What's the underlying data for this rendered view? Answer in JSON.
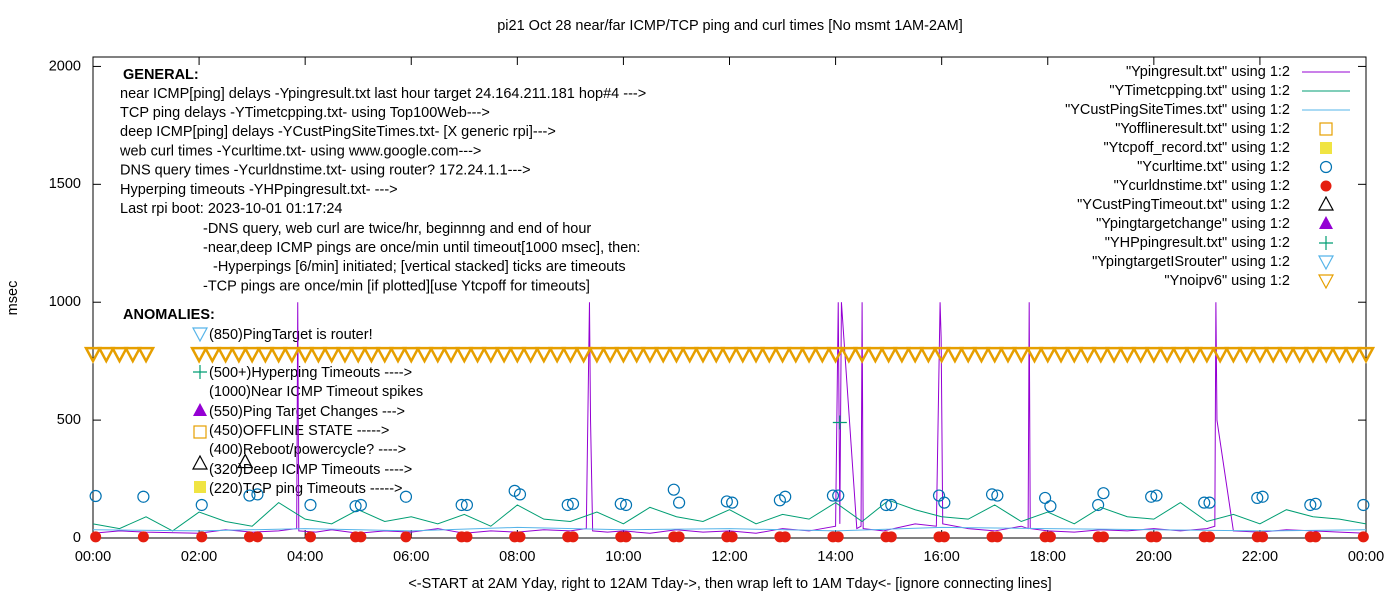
{
  "chart_data": {
    "type": "line",
    "title": "pi21 Oct 28  near/far ICMP/TCP ping and curl times [No msmt 1AM-2AM]",
    "x_label": "<-START at 2AM Yday, right to 12AM Tday->, then wrap left to 1AM Tday<- [ignore connecting lines]",
    "y_label": "msec",
    "xlim": [
      0,
      24
    ],
    "ylim": [
      0,
      2040
    ],
    "xticks": [
      {
        "value": 0,
        "label": "00:00"
      },
      {
        "value": 2,
        "label": "02:00"
      },
      {
        "value": 4,
        "label": "04:00"
      },
      {
        "value": 6,
        "label": "06:00"
      },
      {
        "value": 8,
        "label": "08:00"
      },
      {
        "value": 10,
        "label": "10:00"
      },
      {
        "value": 12,
        "label": "12:00"
      },
      {
        "value": 14,
        "label": "14:00"
      },
      {
        "value": 16,
        "label": "16:00"
      },
      {
        "value": 18,
        "label": "18:00"
      },
      {
        "value": 20,
        "label": "20:00"
      },
      {
        "value": 22,
        "label": "22:00"
      },
      {
        "value": 24,
        "label": "00:00"
      }
    ],
    "yticks": [
      0,
      500,
      1000,
      1500,
      2000
    ],
    "grid": false,
    "legend": "top-right",
    "annotations": [
      "GENERAL:",
      "near ICMP[ping] delays -Ypingresult.txt last hour target 24.164.211.181 hop#4 --->",
      "TCP ping delays -YTimetcpping.txt- using Top100Web--->",
      "deep ICMP[ping] delays -YCustPingSiteTimes.txt- [X generic rpi]--->",
      "web curl times -Ycurltime.txt- using www.google.com--->",
      "DNS query times -Ycurldnstime.txt- using router? 172.24.1.1--->",
      "Hyperping timeouts -YHPpingresult.txt- --->",
      "Last rpi boot: 2023-10-01 01:17:24",
      "-DNS query, web curl are twice/hr, beginnng and end of hour",
      "-near,deep ICMP pings are once/min until timeout[1000 msec], then:",
      "-Hyperpings [6/min] initiated; [vertical stacked] ticks are timeouts",
      "-TCP pings are once/min [if plotted][use Ytcpoff for timeouts]",
      "ANOMALIES:",
      "(850)PingTarget is router!",
      "(500+)Hyperping Timeouts ---->",
      "(1000)Near ICMP Timeout spikes",
      "(550)Ping Target Changes --->",
      "(450)OFFLINE STATE ----->",
      "(400)Reboot/powercycle? ---->",
      "(320)Deep ICMP Timeouts ---->",
      "(220)TCP ping Timeouts ----->"
    ],
    "series": [
      {
        "name": "\"Ypingresult.txt\" using 1:2",
        "color": "#9400d3",
        "style": "line",
        "x": [
          0,
          0.5,
          1,
          2,
          2.5,
          3,
          3.5,
          3.84,
          3.86,
          3.88,
          4.2,
          4.5,
          5,
          5.5,
          6,
          6.5,
          7,
          7.5,
          8,
          8.5,
          9,
          9.3,
          9.36,
          9.38,
          9.42,
          9.7,
          10,
          10.5,
          11,
          11.5,
          12,
          12.5,
          13,
          13.5,
          14,
          14.05,
          14.08,
          14.11,
          14.4,
          14.48,
          14.5,
          14.52,
          14.9,
          15.5,
          15.9,
          15.97,
          15.99,
          16.02,
          16.5,
          17,
          17.5,
          17.63,
          17.65,
          17.67,
          18,
          18.5,
          19,
          19.5,
          20,
          20.5,
          21,
          21.15,
          21.17,
          21.19,
          21.5,
          22,
          22.5,
          23,
          23.5,
          24
        ],
        "values": [
          20,
          30,
          25,
          20,
          35,
          25,
          30,
          40,
          1000,
          30,
          25,
          35,
          20,
          30,
          25,
          40,
          20,
          30,
          25,
          35,
          30,
          40,
          1000,
          500,
          30,
          25,
          30,
          20,
          35,
          25,
          30,
          20,
          40,
          30,
          50,
          1000,
          60,
          1000,
          40,
          50,
          1000,
          40,
          30,
          60,
          50,
          1000,
          850,
          60,
          40,
          30,
          50,
          40,
          1000,
          40,
          30,
          25,
          35,
          30,
          40,
          30,
          40,
          50,
          1000,
          500,
          30,
          25,
          35,
          30,
          25,
          20
        ]
      },
      {
        "name": "\"YTimetcpping.txt\" using 1:2",
        "color": "#009e73",
        "style": "line",
        "x": [
          0,
          0.5,
          1,
          1.5,
          2,
          2.5,
          3,
          3.5,
          4,
          4.5,
          5,
          5.5,
          6,
          6.5,
          7,
          7.5,
          8,
          8.5,
          9,
          9.5,
          10,
          10.5,
          11,
          11.5,
          12,
          12.5,
          13,
          13.5,
          14,
          14.5,
          15,
          15.5,
          16,
          16.5,
          17,
          17.5,
          18,
          18.5,
          19,
          19.5,
          20,
          20.5,
          21,
          21.5,
          22,
          22.5,
          23,
          23.5,
          24
        ],
        "values": [
          60,
          40,
          90,
          30,
          110,
          70,
          50,
          150,
          80,
          60,
          120,
          70,
          90,
          60,
          100,
          50,
          140,
          80,
          70,
          110,
          60,
          130,
          90,
          70,
          120,
          60,
          100,
          80,
          150,
          70,
          160,
          120,
          90,
          80,
          140,
          70,
          110,
          60,
          130,
          90,
          80,
          150,
          70,
          100,
          60,
          120,
          90,
          80,
          60
        ]
      },
      {
        "name": "\"YCustPingSiteTimes.txt\" using 1:2",
        "color": "#56b4e9",
        "style": "line",
        "x": [
          0,
          2,
          4,
          6,
          8,
          10,
          12,
          14,
          16,
          18,
          20,
          22,
          24
        ],
        "values": [
          35,
          30,
          40,
          30,
          45,
          35,
          40,
          30,
          45,
          40,
          35,
          30,
          35
        ]
      },
      {
        "name": "\"Yofflineresult.txt\" using 1:2",
        "color": "#e69f00",
        "style": "open-square",
        "x": [],
        "values": []
      },
      {
        "name": "\"Ytcpoff_record.txt\" using 1:2",
        "color": "#f0e442",
        "style": "filled-square",
        "x": [],
        "values": []
      },
      {
        "name": "\"Ycurltime.txt\" using 1:2",
        "color": "#0072b2",
        "style": "open-circle",
        "x": [
          0.05,
          0.95,
          2.05,
          2.95,
          3.1,
          4.1,
          4.95,
          5.05,
          5.9,
          6.95,
          7.05,
          7.95,
          8.05,
          8.95,
          9.05,
          9.95,
          10.05,
          10.95,
          11.05,
          11.95,
          12.05,
          12.95,
          13.05,
          13.95,
          14.05,
          14.95,
          15.05,
          15.95,
          16.05,
          16.95,
          17.05,
          17.95,
          18.05,
          18.95,
          19.05,
          19.95,
          20.05,
          20.95,
          21.05,
          21.95,
          22.05,
          22.95,
          23.05,
          23.95
        ],
        "values": [
          178,
          175,
          140,
          180,
          185,
          140,
          135,
          140,
          175,
          140,
          140,
          200,
          185,
          140,
          145,
          145,
          140,
          205,
          150,
          155,
          150,
          160,
          175,
          180,
          180,
          140,
          140,
          180,
          150,
          185,
          180,
          170,
          135,
          140,
          190,
          175,
          180,
          150,
          150,
          170,
          175,
          140,
          145,
          140
        ]
      },
      {
        "name": "\"Ycurldnstime.txt\" using 1:2",
        "color": "#e51e10",
        "style": "filled-circle",
        "x": [
          0.05,
          0.95,
          2.05,
          2.95,
          3.1,
          4.1,
          4.95,
          5.05,
          5.9,
          6.95,
          7.05,
          7.95,
          8.05,
          8.95,
          9.05,
          9.95,
          10.05,
          10.95,
          11.05,
          11.95,
          12.05,
          12.95,
          13.05,
          13.95,
          14.05,
          14.95,
          15.05,
          15.95,
          16.05,
          16.95,
          17.05,
          17.95,
          18.05,
          18.95,
          19.05,
          19.95,
          20.05,
          20.95,
          21.05,
          21.95,
          22.05,
          22.95,
          23.05,
          23.95
        ],
        "values": [
          5,
          5,
          5,
          5,
          5,
          5,
          5,
          5,
          5,
          5,
          5,
          5,
          5,
          5,
          5,
          5,
          5,
          5,
          5,
          5,
          5,
          5,
          5,
          5,
          5,
          5,
          5,
          5,
          5,
          5,
          5,
          5,
          5,
          5,
          5,
          5,
          5,
          5,
          5,
          5,
          5,
          5,
          5,
          5
        ]
      },
      {
        "name": "\"YCustPingTimeout.txt\" using 1:2",
        "color": "#000000",
        "style": "open-triangle",
        "x": [
          2.87
        ],
        "values": [
          320
        ]
      },
      {
        "name": "\"Ypingtargetchange\" using 1:2",
        "color": "#9400d3",
        "style": "filled-triangle",
        "x": [],
        "values": []
      },
      {
        "name": "\"YHPpingresult.txt\" using 1:2",
        "color": "#009e73",
        "style": "plus",
        "x": [
          14.08
        ],
        "values": [
          490
        ]
      },
      {
        "name": "\"YpingtargetISrouter\" using 1:2",
        "color": "#56b4e9",
        "style": "open-triangle-down",
        "x": [],
        "values": []
      },
      {
        "name": "\"Ynoipv6\" using 1:2",
        "color": "#e69f00",
        "style": "open-triangle-down",
        "x": [
          0,
          0.25,
          0.5,
          0.75,
          1,
          2,
          2.25,
          2.5,
          2.75,
          3,
          3.25,
          3.5,
          3.75,
          4,
          4.25,
          4.5,
          4.75,
          5,
          5.25,
          5.5,
          5.75,
          6,
          6.25,
          6.5,
          6.75,
          7,
          7.25,
          7.5,
          7.75,
          8,
          8.25,
          8.5,
          8.75,
          9,
          9.25,
          9.5,
          9.75,
          10,
          10.25,
          10.5,
          10.75,
          11,
          11.25,
          11.5,
          11.75,
          12,
          12.25,
          12.5,
          12.75,
          13,
          13.25,
          13.5,
          13.75,
          14,
          14.25,
          14.5,
          14.75,
          15,
          15.25,
          15.5,
          15.75,
          16,
          16.25,
          16.5,
          16.75,
          17,
          17.25,
          17.5,
          17.75,
          18,
          18.25,
          18.5,
          18.75,
          19,
          19.25,
          19.5,
          19.75,
          20,
          20.25,
          20.5,
          20.75,
          21,
          21.25,
          21.5,
          21.75,
          22,
          22.25,
          22.5,
          22.75,
          23,
          23.25,
          23.5,
          23.75,
          24
        ],
        "values": [
          780,
          780,
          780,
          780,
          780,
          780,
          780,
          780,
          780,
          780,
          780,
          780,
          780,
          780,
          780,
          780,
          780,
          780,
          780,
          780,
          780,
          780,
          780,
          780,
          780,
          780,
          780,
          780,
          780,
          780,
          780,
          780,
          780,
          780,
          780,
          780,
          780,
          780,
          780,
          780,
          780,
          780,
          780,
          780,
          780,
          780,
          780,
          780,
          780,
          780,
          780,
          780,
          780,
          780,
          780,
          780,
          780,
          780,
          780,
          780,
          780,
          780,
          780,
          780,
          780,
          780,
          780,
          780,
          780,
          780,
          780,
          780,
          780,
          780,
          780,
          780,
          780,
          780,
          780,
          780,
          780,
          780,
          780,
          780,
          780,
          780,
          780,
          780,
          780,
          780,
          780,
          780,
          780,
          780
        ]
      }
    ]
  }
}
